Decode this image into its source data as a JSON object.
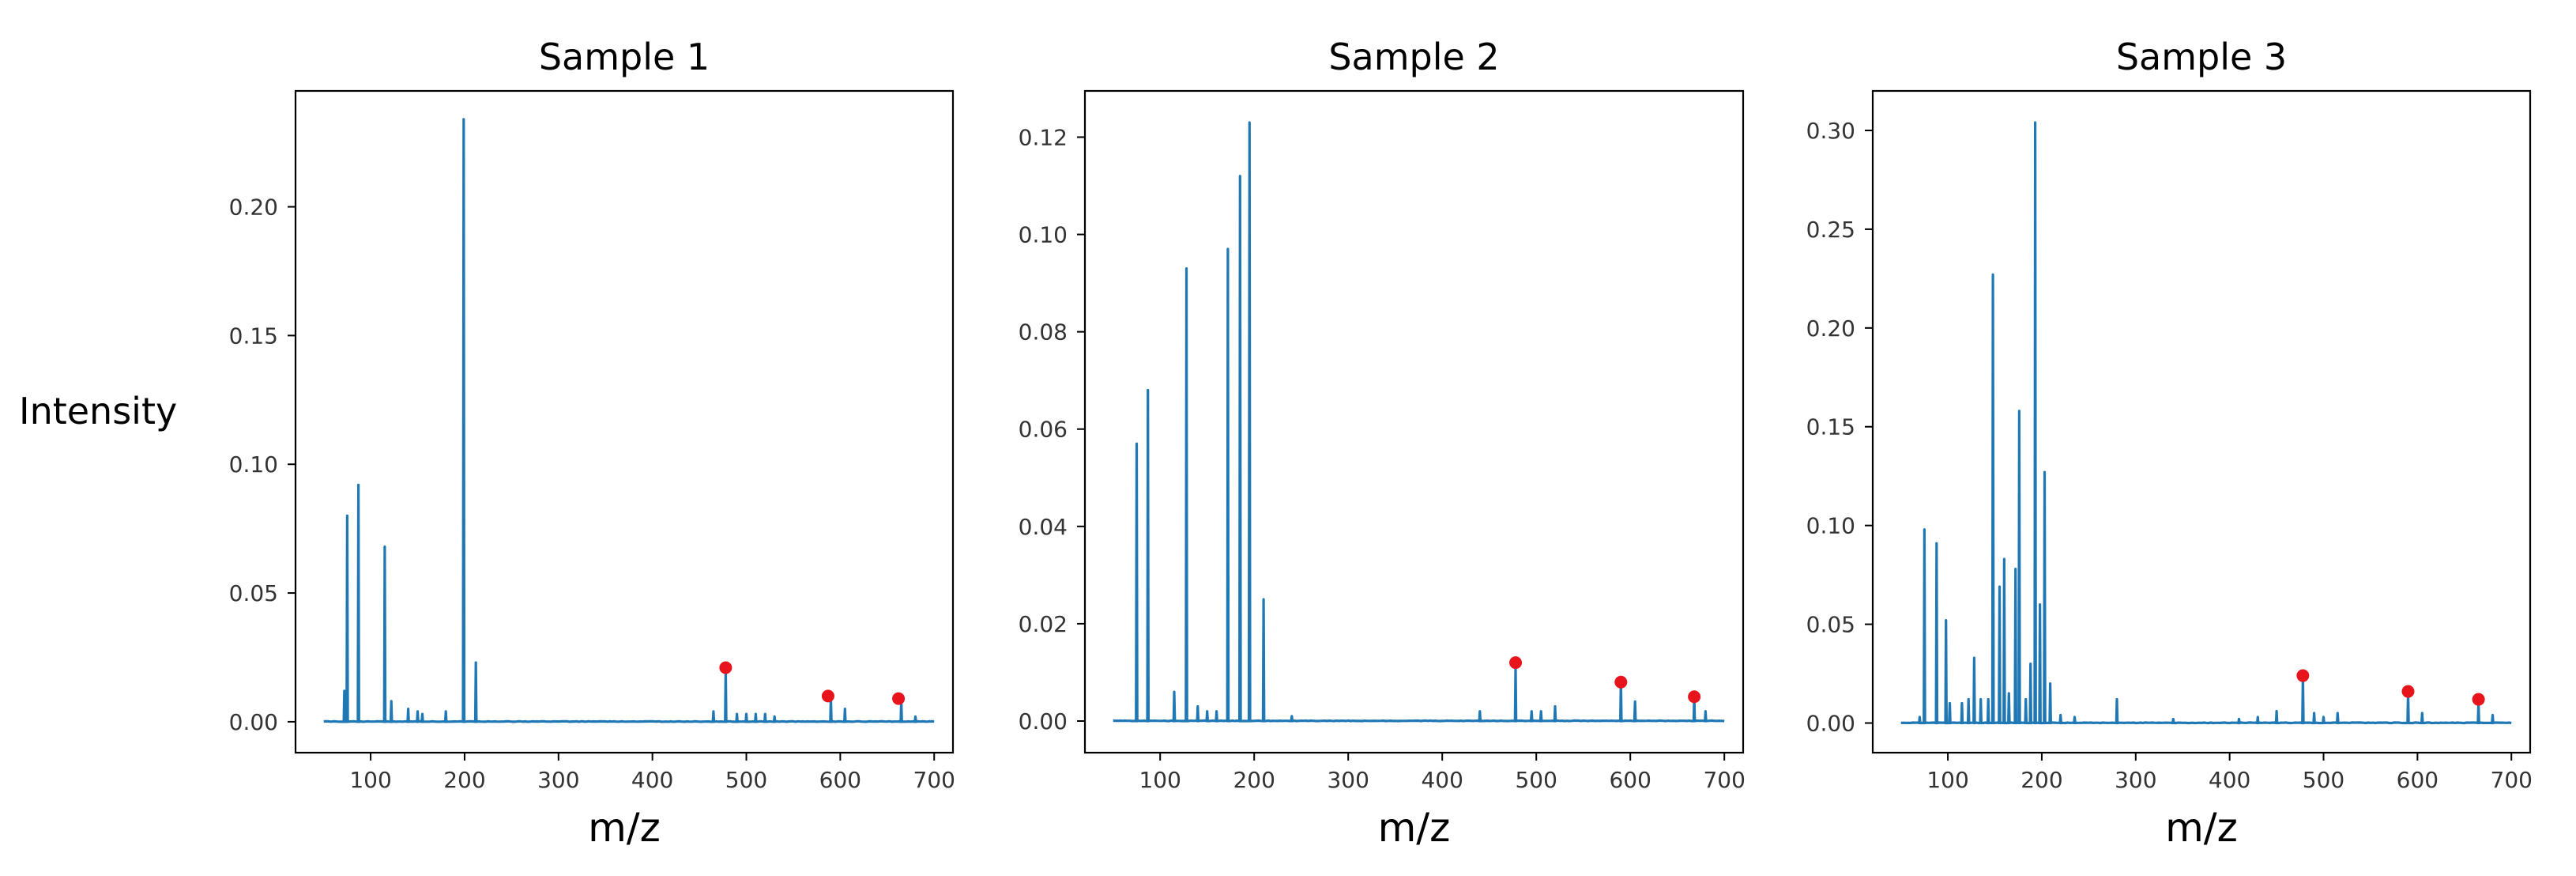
{
  "figure": {
    "ylabel": "Intensity",
    "xlabel": "m/z",
    "line_color": "#1f77b4",
    "marker_color": "#e8141c"
  },
  "chart_data": [
    {
      "type": "line",
      "title": "Sample 1",
      "xlabel": "m/z",
      "ylabel": "Intensity",
      "xlim": [
        20,
        720
      ],
      "ylim": [
        -0.012,
        0.245
      ],
      "xticks": [
        100,
        200,
        300,
        400,
        500,
        600,
        700
      ],
      "yticks": [
        0.0,
        0.05,
        0.1,
        0.15,
        0.2
      ],
      "ytick_labels": [
        "0.00",
        "0.05",
        "0.10",
        "0.15",
        "0.20"
      ],
      "x_range": [
        50,
        700
      ],
      "peaks": [
        [
          72,
          0.012
        ],
        [
          75,
          0.08
        ],
        [
          87,
          0.092
        ],
        [
          115,
          0.068
        ],
        [
          122,
          0.008
        ],
        [
          140,
          0.005
        ],
        [
          150,
          0.004
        ],
        [
          155,
          0.003
        ],
        [
          180,
          0.004
        ],
        [
          199,
          0.234
        ],
        [
          212,
          0.023
        ],
        [
          465,
          0.004
        ],
        [
          478,
          0.02
        ],
        [
          490,
          0.003
        ],
        [
          500,
          0.003
        ],
        [
          510,
          0.003
        ],
        [
          520,
          0.003
        ],
        [
          530,
          0.002
        ],
        [
          590,
          0.009
        ],
        [
          605,
          0.005
        ],
        [
          665,
          0.008
        ],
        [
          680,
          0.002
        ]
      ],
      "markers": [
        [
          478,
          0.021
        ],
        [
          587,
          0.01
        ],
        [
          662,
          0.009
        ]
      ]
    },
    {
      "type": "line",
      "title": "Sample 2",
      "xlabel": "m/z",
      "ylabel": "",
      "xlim": [
        20,
        720
      ],
      "ylim": [
        -0.0065,
        0.1295
      ],
      "xticks": [
        100,
        200,
        300,
        400,
        500,
        600,
        700
      ],
      "yticks": [
        0.0,
        0.02,
        0.04,
        0.06,
        0.08,
        0.1,
        0.12
      ],
      "ytick_labels": [
        "0.00",
        "0.02",
        "0.04",
        "0.06",
        "0.08",
        "0.10",
        "0.12"
      ],
      "x_range": [
        50,
        700
      ],
      "peaks": [
        [
          75,
          0.057
        ],
        [
          87,
          0.068
        ],
        [
          115,
          0.006
        ],
        [
          128,
          0.093
        ],
        [
          140,
          0.003
        ],
        [
          150,
          0.002
        ],
        [
          160,
          0.002
        ],
        [
          172,
          0.097
        ],
        [
          185,
          0.112
        ],
        [
          195,
          0.123
        ],
        [
          210,
          0.025
        ],
        [
          240,
          0.001
        ],
        [
          440,
          0.002
        ],
        [
          478,
          0.011
        ],
        [
          495,
          0.002
        ],
        [
          505,
          0.002
        ],
        [
          520,
          0.003
        ],
        [
          590,
          0.008
        ],
        [
          605,
          0.004
        ],
        [
          668,
          0.005
        ],
        [
          680,
          0.002
        ]
      ],
      "markers": [
        [
          478,
          0.012
        ],
        [
          590,
          0.008
        ],
        [
          668,
          0.005
        ]
      ]
    },
    {
      "type": "line",
      "title": "Sample 3",
      "xlabel": "m/z",
      "ylabel": "",
      "xlim": [
        20,
        720
      ],
      "ylim": [
        -0.015,
        0.32
      ],
      "xticks": [
        100,
        200,
        300,
        400,
        500,
        600,
        700
      ],
      "yticks": [
        0.0,
        0.05,
        0.1,
        0.15,
        0.2,
        0.25,
        0.3
      ],
      "ytick_labels": [
        "0.00",
        "0.05",
        "0.10",
        "0.15",
        "0.20",
        "0.25",
        "0.30"
      ],
      "x_range": [
        50,
        700
      ],
      "peaks": [
        [
          70,
          0.003
        ],
        [
          75,
          0.098
        ],
        [
          88,
          0.091
        ],
        [
          98,
          0.052
        ],
        [
          102,
          0.01
        ],
        [
          115,
          0.01
        ],
        [
          122,
          0.012
        ],
        [
          128,
          0.033
        ],
        [
          135,
          0.012
        ],
        [
          143,
          0.012
        ],
        [
          148,
          0.227
        ],
        [
          155,
          0.069
        ],
        [
          160,
          0.083
        ],
        [
          165,
          0.015
        ],
        [
          172,
          0.078
        ],
        [
          176,
          0.158
        ],
        [
          183,
          0.012
        ],
        [
          188,
          0.03
        ],
        [
          193,
          0.304
        ],
        [
          198,
          0.06
        ],
        [
          203,
          0.127
        ],
        [
          209,
          0.02
        ],
        [
          220,
          0.004
        ],
        [
          235,
          0.003
        ],
        [
          280,
          0.012
        ],
        [
          340,
          0.002
        ],
        [
          410,
          0.002
        ],
        [
          430,
          0.003
        ],
        [
          450,
          0.006
        ],
        [
          478,
          0.023
        ],
        [
          490,
          0.005
        ],
        [
          500,
          0.003
        ],
        [
          515,
          0.005
        ],
        [
          590,
          0.015
        ],
        [
          605,
          0.005
        ],
        [
          665,
          0.01
        ],
        [
          680,
          0.004
        ]
      ],
      "markers": [
        [
          478,
          0.024
        ],
        [
          590,
          0.016
        ],
        [
          665,
          0.012
        ]
      ]
    }
  ]
}
